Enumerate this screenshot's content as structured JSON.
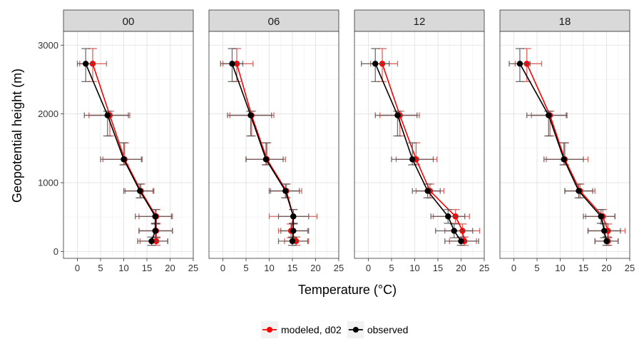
{
  "chart_data": {
    "type": "line",
    "facet_by": "hour",
    "xlabel": "Temperature (°C)",
    "ylabel": "Geopotential height (m)",
    "xlim": [
      -3,
      25
    ],
    "ylim": [
      -100,
      3200
    ],
    "x_ticks": [
      0,
      5,
      10,
      15,
      20,
      25
    ],
    "y_ticks": [
      0,
      1000,
      2000,
      3000
    ],
    "grid": true,
    "legend_position": "bottom",
    "legend": [
      {
        "label": "modeled, d02",
        "color": "#ff0000"
      },
      {
        "label": "observed",
        "color": "#000000"
      }
    ],
    "panels": [
      {
        "strip": "00",
        "series": [
          {
            "key": "modeled",
            "points": [
              {
                "x": 3.3,
                "y": 2730,
                "xmin": 0.5,
                "xmax": 6.3,
                "ymin": 2470,
                "ymax": 2950
              },
              {
                "x": 7.0,
                "y": 1980,
                "xmin": 2.5,
                "xmax": 11.3,
                "ymin": 1680,
                "ymax": 2040
              },
              {
                "x": 10.2,
                "y": 1340,
                "xmin": 5.5,
                "xmax": 14.0,
                "ymin": 1260,
                "ymax": 1580
              },
              {
                "x": 13.7,
                "y": 880,
                "xmin": 10.3,
                "xmax": 16.3,
                "ymin": 780,
                "ymax": 980
              },
              {
                "x": 17.0,
                "y": 510,
                "xmin": 13.3,
                "xmax": 20.5,
                "ymin": 410,
                "ymax": 610
              },
              {
                "x": 17.0,
                "y": 300,
                "xmin": 13.3,
                "xmax": 20.5,
                "ymin": 200,
                "ymax": 400
              },
              {
                "x": 17.0,
                "y": 150,
                "xmin": 13.5,
                "xmax": 19.5,
                "ymin": 90,
                "ymax": 210
              }
            ]
          },
          {
            "key": "observed",
            "points": [
              {
                "x": 1.8,
                "y": 2730,
                "xmin": 0.0,
                "xmax": 3.5,
                "ymin": 2470,
                "ymax": 2950
              },
              {
                "x": 6.5,
                "y": 1980,
                "xmin": 1.5,
                "xmax": 11.0,
                "ymin": 1680,
                "ymax": 2040
              },
              {
                "x": 10.0,
                "y": 1340,
                "xmin": 5.0,
                "xmax": 13.8,
                "ymin": 1260,
                "ymax": 1580
              },
              {
                "x": 13.5,
                "y": 880,
                "xmin": 10.0,
                "xmax": 16.5,
                "ymin": 780,
                "ymax": 980
              },
              {
                "x": 16.8,
                "y": 510,
                "xmin": 12.5,
                "xmax": 20.3,
                "ymin": 410,
                "ymax": 610
              },
              {
                "x": 16.8,
                "y": 300,
                "xmin": 13.3,
                "xmax": 20.5,
                "ymin": 200,
                "ymax": 400
              },
              {
                "x": 16.0,
                "y": 150,
                "xmin": 13.0,
                "xmax": 19.5,
                "ymin": 90,
                "ymax": 210
              }
            ]
          }
        ]
      },
      {
        "strip": "06",
        "series": [
          {
            "key": "modeled",
            "points": [
              {
                "x": 3.0,
                "y": 2730,
                "xmin": 0.0,
                "xmax": 6.5,
                "ymin": 2470,
                "ymax": 2950
              },
              {
                "x": 6.2,
                "y": 1980,
                "xmin": 1.5,
                "xmax": 11.0,
                "ymin": 1680,
                "ymax": 2040
              },
              {
                "x": 9.5,
                "y": 1340,
                "xmin": 5.0,
                "xmax": 13.5,
                "ymin": 1260,
                "ymax": 1580
              },
              {
                "x": 13.7,
                "y": 880,
                "xmin": 10.3,
                "xmax": 17.0,
                "ymin": 780,
                "ymax": 980
              },
              {
                "x": 15.2,
                "y": 510,
                "xmin": 10.0,
                "xmax": 20.3,
                "ymin": 410,
                "ymax": 610
              },
              {
                "x": 14.7,
                "y": 300,
                "xmin": 12.0,
                "xmax": 18.3,
                "ymin": 200,
                "ymax": 400
              },
              {
                "x": 15.8,
                "y": 150,
                "xmin": 13.3,
                "xmax": 18.5,
                "ymin": 90,
                "ymax": 210
              }
            ]
          },
          {
            "key": "observed",
            "points": [
              {
                "x": 2.0,
                "y": 2730,
                "xmin": -0.5,
                "xmax": 4.3,
                "ymin": 2470,
                "ymax": 2950
              },
              {
                "x": 6.0,
                "y": 1980,
                "xmin": 1.0,
                "xmax": 10.5,
                "ymin": 1680,
                "ymax": 2040
              },
              {
                "x": 9.3,
                "y": 1340,
                "xmin": 5.0,
                "xmax": 13.0,
                "ymin": 1260,
                "ymax": 1580
              },
              {
                "x": 13.5,
                "y": 880,
                "xmin": 10.0,
                "xmax": 16.5,
                "ymin": 780,
                "ymax": 980
              },
              {
                "x": 15.2,
                "y": 510,
                "xmin": 12.0,
                "xmax": 18.5,
                "ymin": 410,
                "ymax": 610
              },
              {
                "x": 15.2,
                "y": 300,
                "xmin": 12.5,
                "xmax": 18.5,
                "ymin": 200,
                "ymax": 400
              },
              {
                "x": 15.0,
                "y": 150,
                "xmin": 12.0,
                "xmax": 18.3,
                "ymin": 90,
                "ymax": 210
              }
            ]
          }
        ]
      },
      {
        "strip": "12",
        "series": [
          {
            "key": "modeled",
            "points": [
              {
                "x": 3.0,
                "y": 2730,
                "xmin": 0.5,
                "xmax": 6.3,
                "ymin": 2470,
                "ymax": 2950
              },
              {
                "x": 6.8,
                "y": 1980,
                "xmin": 2.5,
                "xmax": 11.0,
                "ymin": 1680,
                "ymax": 2040
              },
              {
                "x": 10.3,
                "y": 1340,
                "xmin": 6.0,
                "xmax": 14.8,
                "ymin": 1260,
                "ymax": 1580
              },
              {
                "x": 13.3,
                "y": 880,
                "xmin": 10.3,
                "xmax": 16.3,
                "ymin": 780,
                "ymax": 980
              },
              {
                "x": 18.8,
                "y": 510,
                "xmin": 14.0,
                "xmax": 21.8,
                "ymin": 410,
                "ymax": 610
              },
              {
                "x": 20.3,
                "y": 300,
                "xmin": 16.5,
                "xmax": 24.0,
                "ymin": 200,
                "ymax": 400
              },
              {
                "x": 20.7,
                "y": 150,
                "xmin": 17.5,
                "xmax": 23.3,
                "ymin": 90,
                "ymax": 210
              }
            ]
          },
          {
            "key": "observed",
            "points": [
              {
                "x": 1.5,
                "y": 2730,
                "xmin": -1.5,
                "xmax": 4.5,
                "ymin": 2470,
                "ymax": 2950
              },
              {
                "x": 6.3,
                "y": 1980,
                "xmin": 1.5,
                "xmax": 10.5,
                "ymin": 1680,
                "ymax": 2040
              },
              {
                "x": 9.5,
                "y": 1340,
                "xmin": 5.0,
                "xmax": 14.0,
                "ymin": 1260,
                "ymax": 1580
              },
              {
                "x": 12.8,
                "y": 880,
                "xmin": 9.5,
                "xmax": 15.5,
                "ymin": 780,
                "ymax": 980
              },
              {
                "x": 17.2,
                "y": 510,
                "xmin": 13.5,
                "xmax": 20.8,
                "ymin": 410,
                "ymax": 610
              },
              {
                "x": 18.5,
                "y": 300,
                "xmin": 14.5,
                "xmax": 22.5,
                "ymin": 200,
                "ymax": 400
              },
              {
                "x": 20.0,
                "y": 150,
                "xmin": 16.5,
                "xmax": 23.8,
                "ymin": 90,
                "ymax": 210
              }
            ]
          }
        ]
      },
      {
        "strip": "18",
        "series": [
          {
            "key": "modeled",
            "points": [
              {
                "x": 2.8,
                "y": 2730,
                "xmin": 0.3,
                "xmax": 6.0,
                "ymin": 2470,
                "ymax": 2950
              },
              {
                "x": 7.8,
                "y": 1980,
                "xmin": 3.8,
                "xmax": 11.5,
                "ymin": 1680,
                "ymax": 2040
              },
              {
                "x": 11.0,
                "y": 1340,
                "xmin": 7.0,
                "xmax": 16.0,
                "ymin": 1260,
                "ymax": 1580
              },
              {
                "x": 14.3,
                "y": 880,
                "xmin": 11.0,
                "xmax": 17.5,
                "ymin": 780,
                "ymax": 980
              },
              {
                "x": 19.2,
                "y": 510,
                "xmin": 15.5,
                "xmax": 21.8,
                "ymin": 410,
                "ymax": 610
              },
              {
                "x": 20.3,
                "y": 300,
                "xmin": 16.0,
                "xmax": 24.0,
                "ymin": 200,
                "ymax": 400
              },
              {
                "x": 20.3,
                "y": 150,
                "xmin": 17.5,
                "xmax": 22.5,
                "ymin": 90,
                "ymax": 210
              }
            ]
          },
          {
            "key": "observed",
            "points": [
              {
                "x": 1.3,
                "y": 2730,
                "xmin": -1.0,
                "xmax": 3.5,
                "ymin": 2470,
                "ymax": 2950
              },
              {
                "x": 7.5,
                "y": 1980,
                "xmin": 2.8,
                "xmax": 11.3,
                "ymin": 1680,
                "ymax": 2040
              },
              {
                "x": 10.8,
                "y": 1340,
                "xmin": 6.5,
                "xmax": 15.0,
                "ymin": 1260,
                "ymax": 1580
              },
              {
                "x": 14.0,
                "y": 880,
                "xmin": 11.0,
                "xmax": 17.0,
                "ymin": 780,
                "ymax": 980
              },
              {
                "x": 18.8,
                "y": 510,
                "xmin": 15.0,
                "xmax": 21.8,
                "ymin": 410,
                "ymax": 610
              },
              {
                "x": 19.5,
                "y": 300,
                "xmin": 16.0,
                "xmax": 23.0,
                "ymin": 200,
                "ymax": 400
              },
              {
                "x": 20.0,
                "y": 150,
                "xmin": 17.5,
                "xmax": 22.5,
                "ymin": 90,
                "ymax": 210
              }
            ]
          }
        ]
      }
    ]
  }
}
